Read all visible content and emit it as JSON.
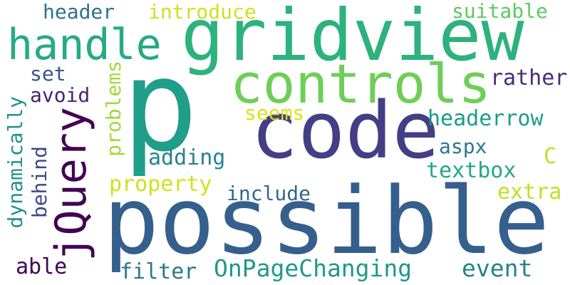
{
  "cloud": {
    "words": [
      {
        "text": "p",
        "color": "#1f9e89",
        "vertical": false
      },
      {
        "text": "gridview",
        "color": "#2db27d",
        "vertical": false
      },
      {
        "text": "possible",
        "color": "#355f8d",
        "vertical": false
      },
      {
        "text": "code",
        "color": "#433e85",
        "vertical": false
      },
      {
        "text": "controls",
        "color": "#6ece58",
        "vertical": false
      },
      {
        "text": "jQuery",
        "color": "#440154",
        "vertical": true
      },
      {
        "text": "handle",
        "color": "#25ab82",
        "vertical": false
      },
      {
        "text": "OnPageChanging",
        "color": "#1f988b",
        "vertical": false
      },
      {
        "text": "event",
        "color": "#25838e",
        "vertical": false
      },
      {
        "text": "header",
        "color": "#2d708e",
        "vertical": false
      },
      {
        "text": "introduce",
        "color": "#d0e11c",
        "vertical": false
      },
      {
        "text": "suitable",
        "color": "#5ec962",
        "vertical": false
      },
      {
        "text": "headerrow",
        "color": "#1e9b8a",
        "vertical": false
      },
      {
        "text": "rather",
        "color": "#472c7a",
        "vertical": false
      },
      {
        "text": "seems",
        "color": "#d8e219",
        "vertical": false
      },
      {
        "text": "adding",
        "color": "#26828e",
        "vertical": false
      },
      {
        "text": "property",
        "color": "#d0e11c",
        "vertical": false
      },
      {
        "text": "include",
        "color": "#31688e",
        "vertical": false
      },
      {
        "text": "textbox",
        "color": "#22a884",
        "vertical": false
      },
      {
        "text": "aspx",
        "color": "#2a788e",
        "vertical": false
      },
      {
        "text": "C",
        "color": "#bddf26",
        "vertical": false
      },
      {
        "text": "extra",
        "color": "#c2df23",
        "vertical": false
      },
      {
        "text": "set",
        "color": "#3b528b",
        "vertical": false
      },
      {
        "text": "avoid",
        "color": "#482475",
        "vertical": false
      },
      {
        "text": "able",
        "color": "#440154",
        "vertical": false
      },
      {
        "text": "filter",
        "color": "#2a788e",
        "vertical": false
      },
      {
        "text": "problems",
        "color": "#a0da39",
        "vertical": true
      },
      {
        "text": "dynamically",
        "color": "#218f8d",
        "vertical": true
      },
      {
        "text": "behind",
        "color": "#3e4989",
        "vertical": true
      }
    ]
  }
}
